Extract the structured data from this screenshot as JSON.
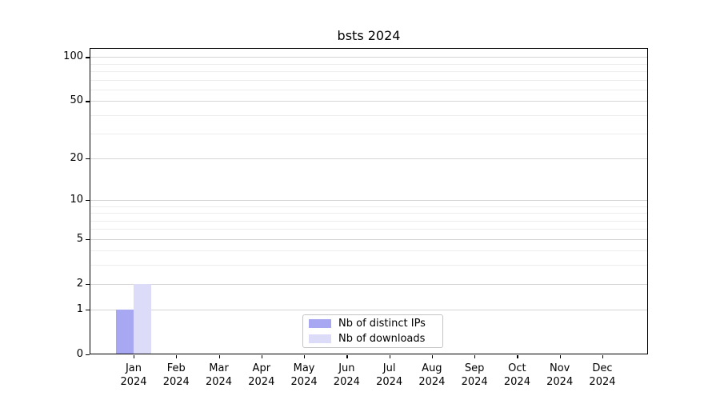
{
  "chart_data": {
    "type": "bar",
    "title": "bsts 2024",
    "categories": [
      "Jan",
      "Feb",
      "Mar",
      "Apr",
      "May",
      "Jun",
      "Jul",
      "Aug",
      "Sep",
      "Oct",
      "Nov",
      "Dec"
    ],
    "x_year": "2024",
    "series": [
      {
        "name": "Nb of distinct IPs",
        "color": "#a8a8f2",
        "values": [
          1,
          0,
          0,
          0,
          0,
          0,
          0,
          0,
          0,
          0,
          0,
          0
        ]
      },
      {
        "name": "Nb of downloads",
        "color": "#dcdcf8",
        "values": [
          2,
          0,
          0,
          0,
          0,
          0,
          0,
          0,
          0,
          0,
          0,
          0
        ]
      }
    ],
    "y_scale": "log1p",
    "ylim": [
      0,
      124
    ],
    "y_ticks": [
      0,
      1,
      2,
      5,
      10,
      20,
      50,
      100
    ],
    "y_minor_gridlines": [
      3,
      4,
      6,
      7,
      8,
      9,
      30,
      40,
      60,
      70,
      80,
      90
    ],
    "grid": true,
    "legend_position": "lower center"
  },
  "colors": {
    "major_grid": "#d4d4d4",
    "minor_grid": "#ededed",
    "axis": "#000000",
    "legend_border": "#c4c4c4",
    "background": "#ffffff"
  }
}
